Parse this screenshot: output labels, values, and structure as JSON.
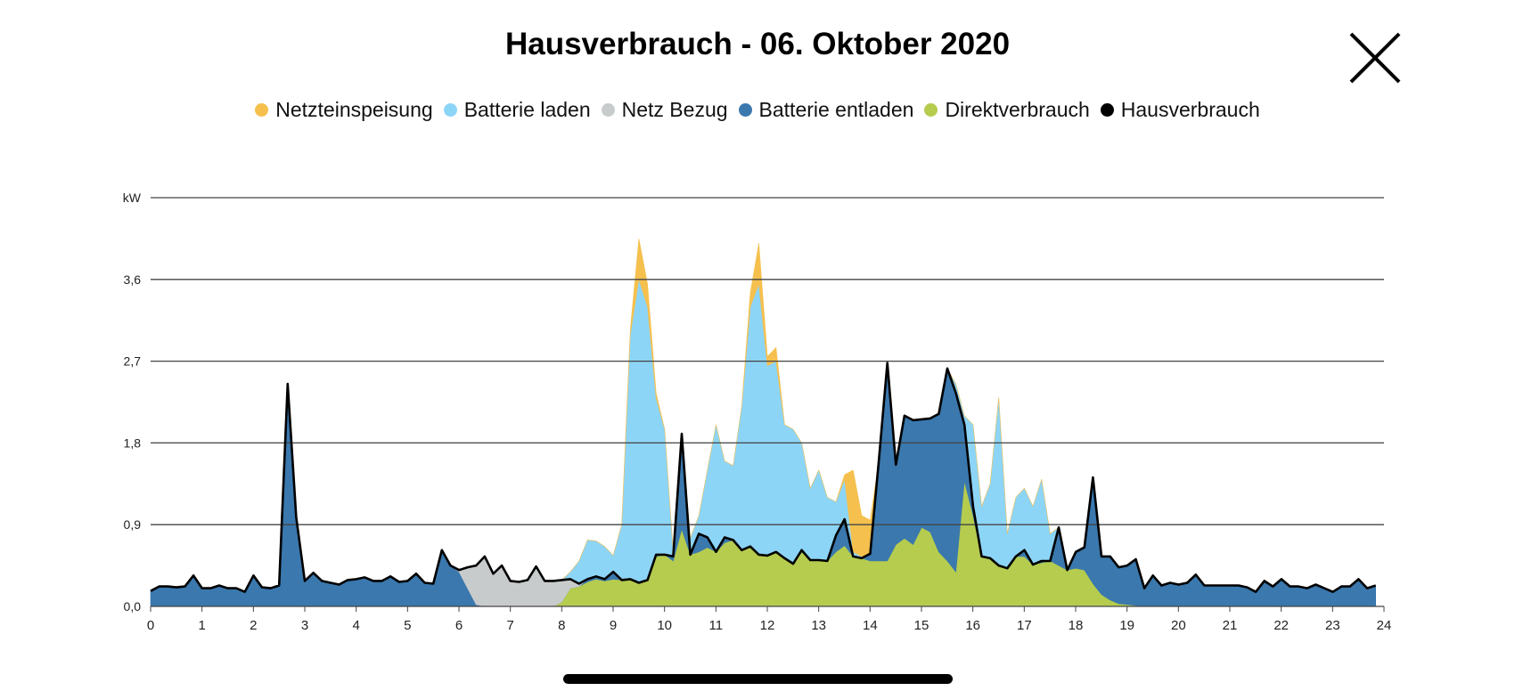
{
  "header": {
    "title": "Hausverbrauch - 06. Oktober 2020",
    "close_icon": "close-x-icon"
  },
  "colors": {
    "einspeisung": "#F5C04E",
    "laden": "#8DD5F7",
    "bezug": "#C8CBCC",
    "entladen": "#3A78AE",
    "direkt": "#B5CC4E",
    "haus": "#000000"
  },
  "chart_data": {
    "type": "area",
    "title": "Hausverbrauch - 06. Oktober 2020",
    "xlabel": "",
    "ylabel": "kW",
    "xlim": [
      0,
      24
    ],
    "ylim": [
      0,
      4.5
    ],
    "x_step_hours": 0.1667,
    "x_ticks": [
      "0",
      "1",
      "2",
      "3",
      "4",
      "5",
      "6",
      "7",
      "8",
      "9",
      "10",
      "11",
      "12",
      "13",
      "14",
      "15",
      "16",
      "17",
      "18",
      "19",
      "20",
      "21",
      "22",
      "23",
      "24"
    ],
    "y_ticks": [
      {
        "v": 0,
        "label": "0,0"
      },
      {
        "v": 0.9,
        "label": "0,9"
      },
      {
        "v": 1.8,
        "label": "1,8"
      },
      {
        "v": 2.7,
        "label": "2,7"
      },
      {
        "v": 3.6,
        "label": "3,6"
      },
      {
        "v": 4.5,
        "label": "kW"
      }
    ],
    "grid": true,
    "legend_position": "top",
    "stacked_series": [
      {
        "key": "direkt",
        "name": "Direktverbrauch",
        "values": [
          0,
          0,
          0,
          0,
          0,
          0,
          0,
          0,
          0,
          0,
          0,
          0,
          0,
          0,
          0,
          0,
          0,
          0,
          0,
          0,
          0,
          0,
          0,
          0,
          0,
          0,
          0,
          0,
          0,
          0,
          0,
          0,
          0,
          0,
          0,
          0,
          0,
          0,
          0,
          0,
          0,
          0,
          0,
          0,
          0,
          0,
          0,
          0,
          0.05,
          0.2,
          0.22,
          0.27,
          0.3,
          0.28,
          0.3,
          0.29,
          0.3,
          0.26,
          0.29,
          0.55,
          0.57,
          0.5,
          0.85,
          0.57,
          0.6,
          0.65,
          0.6,
          0.7,
          0.73,
          0.62,
          0.66,
          0.57,
          0.56,
          0.6,
          0.53,
          0.47,
          0.6,
          0.51,
          0.51,
          0.5,
          0.6,
          0.67,
          0.55,
          0.53,
          0.5,
          0.5,
          0.5,
          0.68,
          0.75,
          0.68,
          0.87,
          0.82,
          0.6,
          0.5,
          0.38,
          1.38,
          1.0,
          0.55,
          0.53,
          0.45,
          0.42,
          0.55,
          0.55,
          0.46,
          0.48,
          0.5,
          0.45,
          0.4,
          0.42,
          0.4,
          0.25,
          0.13,
          0.07,
          0.03,
          0.02,
          0.01,
          0,
          0,
          0,
          0,
          0,
          0,
          0,
          0,
          0,
          0,
          0,
          0,
          0,
          0,
          0,
          0,
          0,
          0,
          0,
          0,
          0,
          0,
          0,
          0,
          0,
          0,
          0,
          0
        ]
      },
      {
        "key": "entladen",
        "name": "Batterie entladen",
        "values": [
          0.17,
          0.22,
          0.22,
          0.21,
          0.22,
          0.34,
          0.2,
          0.2,
          0.23,
          0.2,
          0.2,
          0.16,
          0.34,
          0.21,
          0.2,
          0.23,
          2.45,
          0.98,
          0.28,
          0.37,
          0.28,
          0.26,
          0.24,
          0.29,
          0.3,
          0.32,
          0.28,
          0.28,
          0.33,
          0.27,
          0.28,
          0.36,
          0.26,
          0.25,
          0.62,
          0.45,
          0.38,
          0.2,
          0.02,
          0,
          0,
          0,
          0,
          0,
          0,
          0,
          0,
          0,
          0,
          0,
          0,
          0.03,
          0.03,
          0.02,
          0.08,
          0,
          0,
          0,
          0,
          0.02,
          0,
          0.05,
          1.05,
          0,
          0.2,
          0.11,
          0,
          0.06,
          0,
          0,
          0,
          0,
          0,
          0,
          0,
          0,
          0.02,
          0,
          0,
          0,
          0.18,
          0.29,
          0,
          0,
          0.08,
          1.1,
          2.18,
          0.88,
          1.35,
          1.37,
          1.19,
          1.25,
          1.52,
          2.12,
          1.97,
          0.62,
          0.1,
          0,
          0,
          0,
          0,
          0,
          0.07,
          0,
          0.02,
          0,
          0.42,
          0,
          0.18,
          0.25,
          1.17,
          0.42,
          0.48,
          0.4,
          0.43,
          0.51,
          0.2,
          0.34,
          0.23,
          0.26,
          0.24,
          0.26,
          0.35,
          0.23,
          0.23,
          0.23,
          0.23,
          0.23,
          0.21,
          0.16,
          0.28,
          0.22,
          0.3,
          0.22,
          0.22,
          0.2,
          0.24,
          0.2,
          0.16,
          0.22,
          0.22,
          0.3,
          0.2,
          0.23
        ]
      },
      {
        "key": "bezug",
        "name": "Netz Bezug",
        "values": [
          0,
          0,
          0,
          0,
          0,
          0,
          0,
          0,
          0,
          0,
          0,
          0,
          0,
          0,
          0,
          0,
          0,
          0,
          0,
          0,
          0,
          0,
          0,
          0,
          0,
          0,
          0,
          0,
          0,
          0,
          0,
          0,
          0,
          0,
          0,
          0,
          0.02,
          0.23,
          0.43,
          0.55,
          0.36,
          0.45,
          0.28,
          0.27,
          0.29,
          0.44,
          0.28,
          0.28,
          0.24,
          0.1,
          0.03,
          0,
          0,
          0,
          0,
          0,
          0,
          0,
          0,
          0,
          0,
          0,
          0,
          0,
          0,
          0,
          0,
          0,
          0,
          0,
          0,
          0,
          0,
          0,
          0,
          0,
          0,
          0,
          0,
          0,
          0,
          0,
          0,
          0,
          0,
          0,
          0,
          0,
          0,
          0,
          0,
          0,
          0,
          0,
          0,
          0,
          0,
          0,
          0,
          0,
          0,
          0,
          0,
          0,
          0,
          0,
          0,
          0,
          0,
          0,
          0,
          0,
          0,
          0,
          0,
          0,
          0,
          0,
          0,
          0,
          0,
          0,
          0,
          0,
          0,
          0,
          0,
          0,
          0,
          0,
          0,
          0,
          0,
          0,
          0,
          0,
          0,
          0,
          0,
          0,
          0,
          0,
          0,
          0
        ]
      },
      {
        "key": "laden",
        "name": "Batterie laden",
        "values": [
          0,
          0,
          0,
          0,
          0,
          0,
          0,
          0,
          0,
          0,
          0,
          0,
          0,
          0,
          0,
          0,
          0,
          0,
          0,
          0,
          0,
          0,
          0,
          0,
          0,
          0,
          0,
          0,
          0,
          0,
          0,
          0,
          0,
          0,
          0,
          0,
          0,
          0,
          0,
          0,
          0,
          0,
          0,
          0,
          0,
          0,
          0,
          0,
          0,
          0.08,
          0.25,
          0.43,
          0.39,
          0.36,
          0.18,
          0.61,
          2.7,
          3.34,
          3.01,
          1.73,
          1.38,
          0.05,
          0,
          0.18,
          0.2,
          0.74,
          1.4,
          0.84,
          0.82,
          1.58,
          2.64,
          2.98,
          2.09,
          2.1,
          1.47,
          1.48,
          1.18,
          0.79,
          0.99,
          0.7,
          0.37,
          0.44,
          0.05,
          0.02,
          0,
          0,
          0,
          0,
          0,
          0,
          0,
          0,
          0,
          0,
          0.1,
          0.1,
          0.9,
          0.55,
          0.82,
          1.85,
          0.38,
          0.65,
          0.68,
          0.64,
          0.9,
          0.3,
          0,
          0,
          0,
          0,
          0,
          0,
          0,
          0,
          0,
          0,
          0,
          0,
          0,
          0,
          0,
          0,
          0,
          0,
          0,
          0,
          0,
          0,
          0,
          0,
          0,
          0,
          0,
          0,
          0,
          0,
          0,
          0,
          0,
          0,
          0,
          0,
          0,
          0
        ]
      },
      {
        "key": "einspeisung",
        "name": "Netzteinspeisung",
        "values": [
          0,
          0,
          0,
          0,
          0,
          0,
          0,
          0,
          0,
          0,
          0,
          0,
          0,
          0,
          0,
          0,
          0,
          0,
          0,
          0,
          0,
          0,
          0,
          0,
          0,
          0,
          0,
          0,
          0,
          0,
          0,
          0,
          0,
          0,
          0,
          0,
          0,
          0,
          0,
          0,
          0,
          0,
          0,
          0,
          0,
          0,
          0,
          0,
          0,
          0,
          0,
          0,
          0,
          0,
          0,
          0,
          0.05,
          0.45,
          0.25,
          0.05,
          0,
          0,
          0,
          0,
          0,
          0,
          0,
          0,
          0,
          0,
          0.15,
          0.45,
          0.1,
          0.15,
          0,
          0,
          0,
          0,
          0,
          0,
          0,
          0.05,
          0.9,
          0.45,
          0.37,
          0,
          0,
          0,
          0,
          0,
          0,
          0,
          0,
          0,
          0,
          0,
          0,
          0,
          0,
          0,
          0,
          0,
          0,
          0,
          0,
          0,
          0,
          0,
          0,
          0,
          0,
          0,
          0,
          0,
          0,
          0,
          0,
          0,
          0,
          0,
          0,
          0,
          0,
          0,
          0,
          0,
          0,
          0,
          0,
          0,
          0,
          0,
          0,
          0,
          0,
          0,
          0,
          0,
          0,
          0,
          0,
          0,
          0,
          0
        ]
      }
    ],
    "line_series": {
      "key": "haus",
      "name": "Hausverbrauch",
      "values": [
        0.17,
        0.22,
        0.22,
        0.21,
        0.22,
        0.34,
        0.2,
        0.2,
        0.23,
        0.2,
        0.2,
        0.16,
        0.34,
        0.21,
        0.2,
        0.23,
        2.45,
        0.98,
        0.28,
        0.37,
        0.28,
        0.26,
        0.24,
        0.29,
        0.3,
        0.32,
        0.28,
        0.28,
        0.33,
        0.27,
        0.28,
        0.36,
        0.26,
        0.25,
        0.62,
        0.45,
        0.4,
        0.43,
        0.45,
        0.55,
        0.36,
        0.45,
        0.28,
        0.27,
        0.29,
        0.44,
        0.28,
        0.28,
        0.29,
        0.3,
        0.25,
        0.3,
        0.33,
        0.3,
        0.38,
        0.29,
        0.3,
        0.26,
        0.29,
        0.57,
        0.57,
        0.55,
        1.9,
        0.57,
        0.8,
        0.76,
        0.6,
        0.76,
        0.73,
        0.62,
        0.66,
        0.57,
        0.56,
        0.6,
        0.53,
        0.47,
        0.62,
        0.51,
        0.51,
        0.5,
        0.78,
        0.96,
        0.55,
        0.53,
        0.58,
        1.6,
        2.68,
        1.56,
        2.1,
        2.05,
        2.06,
        2.07,
        2.12,
        2.62,
        2.35,
        2.0,
        1.1,
        0.55,
        0.53,
        0.45,
        0.42,
        0.55,
        0.62,
        0.46,
        0.5,
        0.5,
        0.87,
        0.4,
        0.6,
        0.65,
        1.42,
        0.55,
        0.55,
        0.43,
        0.45,
        0.52,
        0.2,
        0.34,
        0.23,
        0.26,
        0.24,
        0.26,
        0.35,
        0.23,
        0.23,
        0.23,
        0.23,
        0.23,
        0.21,
        0.16,
        0.28,
        0.22,
        0.3,
        0.22,
        0.22,
        0.2,
        0.24,
        0.2,
        0.16,
        0.22,
        0.22,
        0.3,
        0.2,
        0.23
      ]
    }
  },
  "legend": [
    {
      "key": "einspeisung",
      "label": "Netzteinspeisung"
    },
    {
      "key": "laden",
      "label": "Batterie laden"
    },
    {
      "key": "bezug",
      "label": "Netz Bezug"
    },
    {
      "key": "entladen",
      "label": "Batterie entladen"
    },
    {
      "key": "direkt",
      "label": "Direktverbrauch"
    },
    {
      "key": "haus",
      "label": "Hausverbrauch"
    }
  ]
}
